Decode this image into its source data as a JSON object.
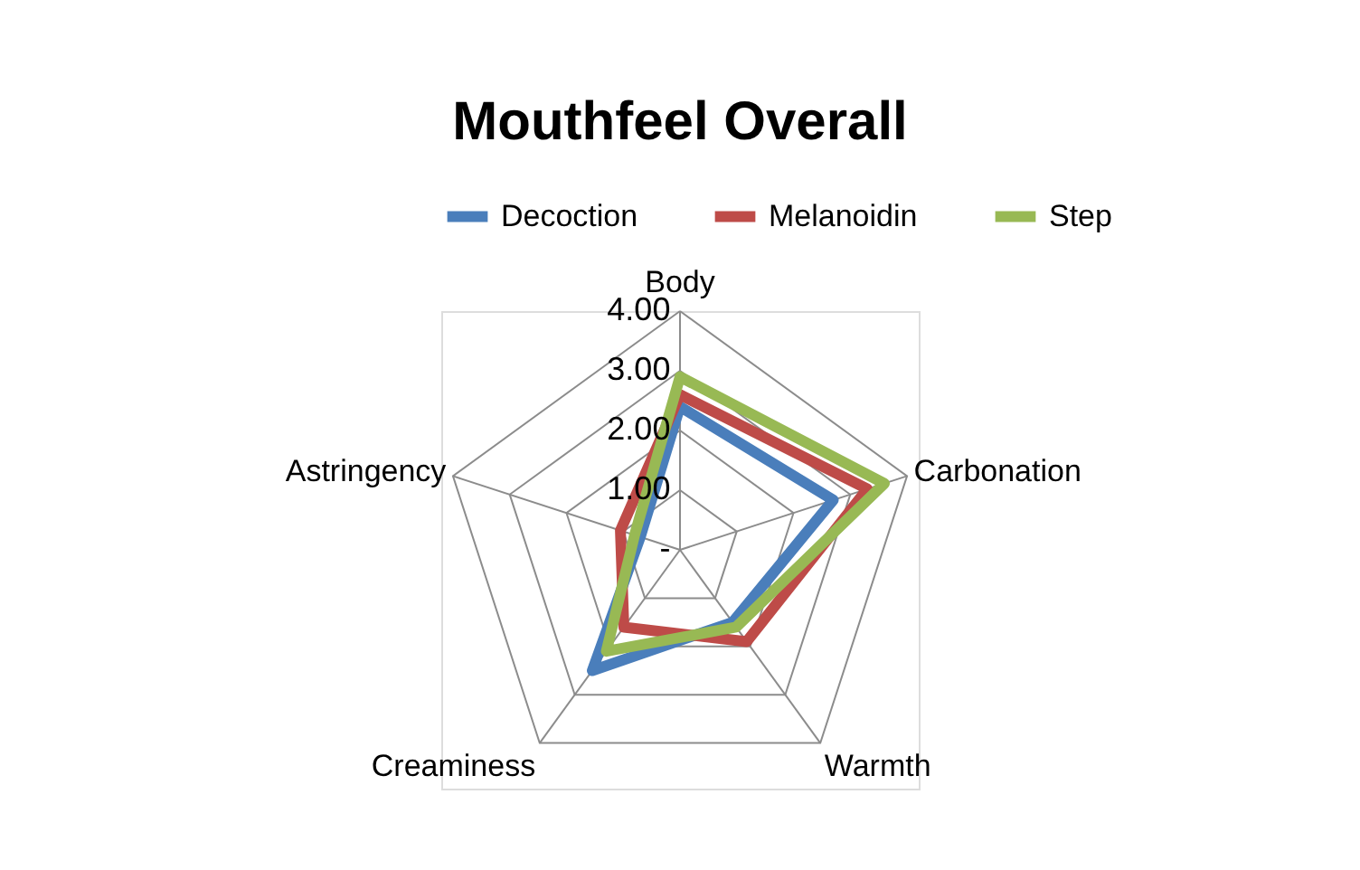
{
  "chart_data": {
    "type": "radar",
    "title": "Mouthfeel Overall",
    "categories": [
      "Body",
      "Carbonation",
      "Warmth",
      "Creaminess",
      "Astringency"
    ],
    "series": [
      {
        "name": "Decoction",
        "color": "#4a7ebb",
        "values": [
          2.4,
          2.7,
          1.5,
          2.5,
          0.7
        ]
      },
      {
        "name": "Melanoidin",
        "color": "#be4b48",
        "values": [
          2.6,
          3.3,
          1.9,
          1.6,
          1.05
        ]
      },
      {
        "name": "Step",
        "color": "#98b954",
        "values": [
          2.9,
          3.6,
          1.6,
          2.1,
          0.8
        ]
      }
    ],
    "ylim": [
      0,
      4
    ],
    "yticks": [
      {
        "value": 0,
        "label": "-"
      },
      {
        "value": 1,
        "label": "1.00"
      },
      {
        "value": 2,
        "label": "2.00"
      },
      {
        "value": 3,
        "label": "3.00"
      },
      {
        "value": 4,
        "label": "4.00"
      }
    ],
    "grid": true,
    "legend": "top"
  }
}
